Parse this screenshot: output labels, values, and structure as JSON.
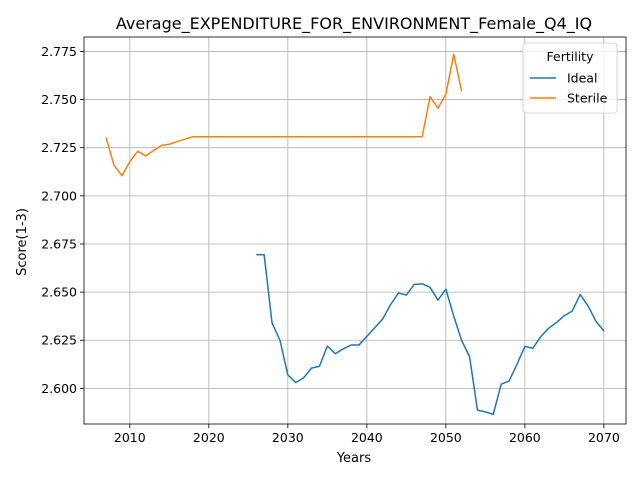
{
  "chart_data": {
    "type": "line",
    "title": "Average_EXPENDITURE_FOR_ENVIRONMENT_Female_Q4_IQ",
    "xlabel": "Years",
    "ylabel": "Score(1-3)",
    "xlim": [
      2004.2,
      2072.8
    ],
    "ylim": [
      2.5815,
      2.7825
    ],
    "xticks": [
      2010,
      2020,
      2030,
      2040,
      2050,
      2060,
      2070
    ],
    "yticks": [
      2.6,
      2.625,
      2.65,
      2.675,
      2.7,
      2.725,
      2.75,
      2.775
    ],
    "ytick_labels": [
      "2.600",
      "2.625",
      "2.650",
      "2.675",
      "2.700",
      "2.725",
      "2.750",
      "2.775"
    ],
    "grid": true,
    "legend": {
      "title": "Fertility",
      "placement": "top-right"
    },
    "series": [
      {
        "name": "Ideal",
        "color": "#1f77b4",
        "x": [
          2026,
          2027,
          2028,
          2029,
          2030,
          2031,
          2032,
          2033,
          2034,
          2035,
          2036,
          2037,
          2038,
          2039,
          2040,
          2041,
          2042,
          2043,
          2044,
          2045,
          2046,
          2047,
          2048,
          2049,
          2050,
          2051,
          2052,
          2053,
          2054,
          2055,
          2056,
          2057,
          2058,
          2059,
          2060,
          2061,
          2062,
          2063,
          2064,
          2065,
          2066,
          2067,
          2068,
          2069,
          2070
        ],
        "y": [
          2.6695,
          2.6694,
          2.634,
          2.625,
          2.607,
          2.603,
          2.6055,
          2.6105,
          2.6115,
          2.622,
          2.618,
          2.6205,
          2.6225,
          2.6225,
          2.627,
          2.6315,
          2.636,
          2.6435,
          2.6495,
          2.6485,
          2.654,
          2.6543,
          2.6525,
          2.6458,
          2.6515,
          2.6375,
          2.6248,
          2.6165,
          2.5887,
          2.5878,
          2.5865,
          2.6022,
          2.6038,
          2.6125,
          2.6218,
          2.6208,
          2.6268,
          2.6312,
          2.6342,
          2.6378,
          2.6402,
          2.6487,
          2.6428,
          2.6348,
          2.6298
        ]
      },
      {
        "name": "Sterile",
        "color": "#ff7f0e",
        "x": [
          2007,
          2008,
          2009,
          2010,
          2011,
          2012,
          2013,
          2014,
          2015,
          2016,
          2017,
          2018,
          2019,
          2020,
          2021,
          2022,
          2023,
          2024,
          2025,
          2026,
          2027,
          2028,
          2029,
          2030,
          2031,
          2032,
          2033,
          2034,
          2035,
          2036,
          2037,
          2038,
          2039,
          2040,
          2041,
          2042,
          2043,
          2044,
          2045,
          2046,
          2047,
          2048,
          2049,
          2050,
          2051,
          2052
        ],
        "y": [
          2.7302,
          2.7158,
          2.7105,
          2.7178,
          2.7232,
          2.7208,
          2.7235,
          2.7262,
          2.7268,
          2.7282,
          2.7295,
          2.7307,
          2.7307,
          2.7307,
          2.7307,
          2.7307,
          2.7307,
          2.7307,
          2.7307,
          2.7307,
          2.7307,
          2.7307,
          2.7307,
          2.7307,
          2.7307,
          2.7307,
          2.7307,
          2.7307,
          2.7307,
          2.7307,
          2.7307,
          2.7307,
          2.7307,
          2.7307,
          2.7307,
          2.7307,
          2.7307,
          2.7307,
          2.7307,
          2.7307,
          2.7307,
          2.7515,
          2.7455,
          2.7528,
          2.7735,
          2.7542
        ]
      }
    ]
  }
}
